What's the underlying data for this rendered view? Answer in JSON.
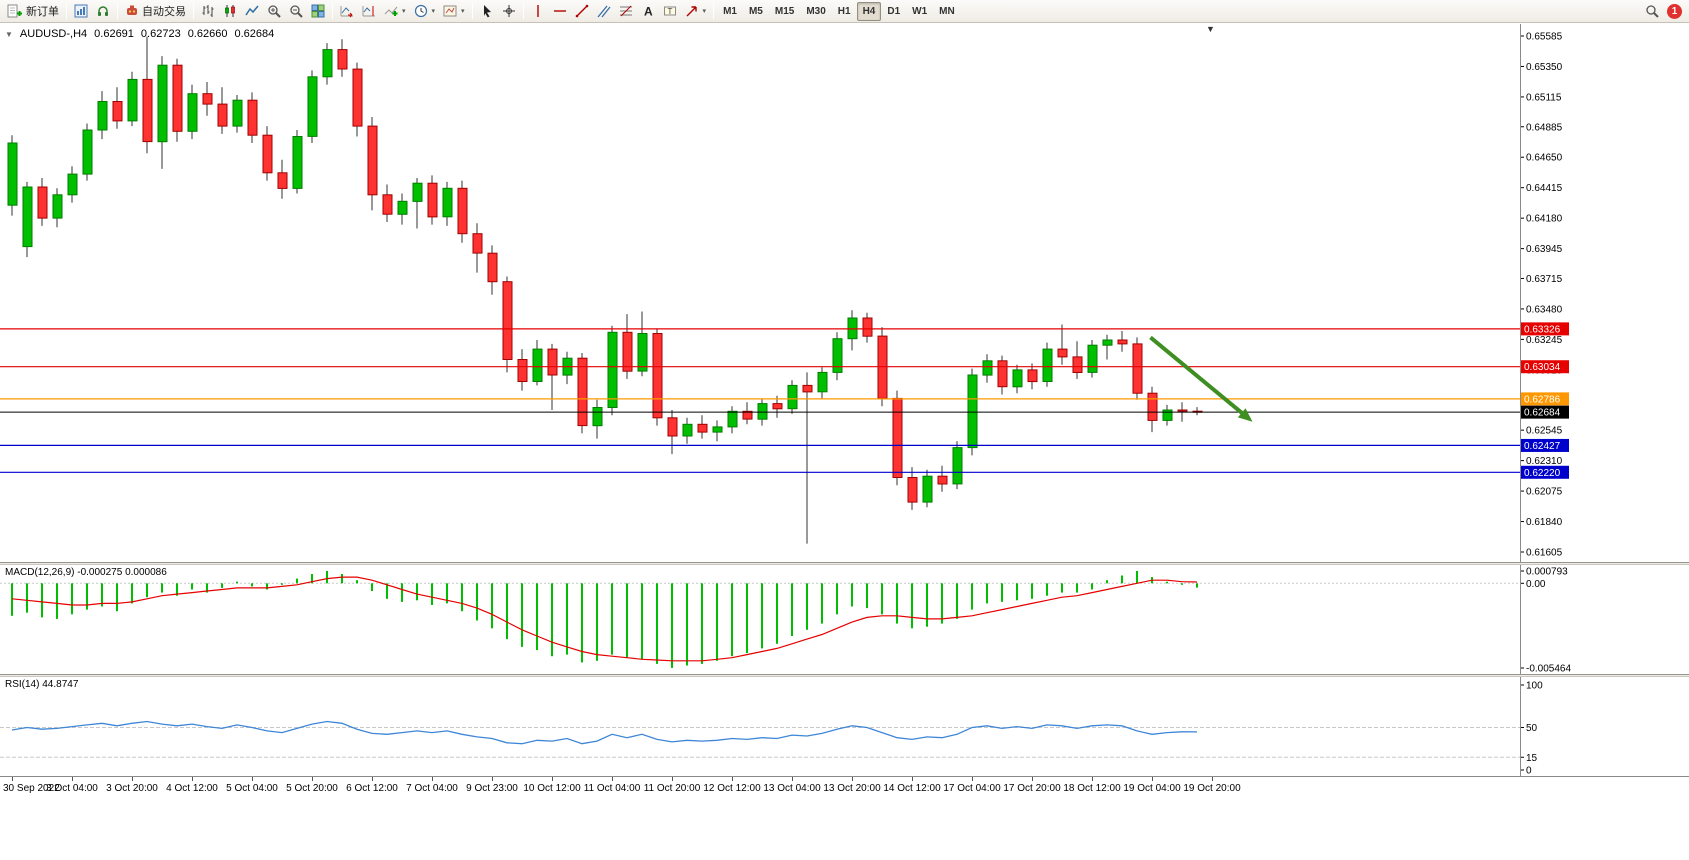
{
  "toolbar": {
    "new_order_label": "新订单",
    "autotrading_label": "自动交易",
    "timeframes": [
      "M1",
      "M5",
      "M15",
      "M30",
      "H1",
      "H4",
      "D1",
      "W1",
      "MN"
    ],
    "active_timeframe": "H4",
    "notification_badge": "1"
  },
  "icons": {
    "caret_down": "▾",
    "one_click": "▼",
    "shift_marker": "▼"
  },
  "chart_header": {
    "symbol_period": "AUDUSD-,H4",
    "open": "0.62691",
    "high": "0.62723",
    "low": "0.62660",
    "close": "0.62684"
  },
  "chart_data": {
    "type": "candlestick",
    "symbol": "AUDUSD-",
    "period": "H4",
    "colors": {
      "up": "#00be00",
      "down": "#ff3232",
      "up_border": "#007d00",
      "down_border": "#a00000",
      "wick": "#333333",
      "bg": "#ffffff"
    },
    "price_axis": {
      "min": 0.61605,
      "max": 0.65585,
      "ticks": [
        0.65585,
        0.6535,
        0.65115,
        0.64885,
        0.6465,
        0.64415,
        0.6418,
        0.63945,
        0.63715,
        0.6348,
        0.63245,
        0.6301,
        0.6278,
        0.62545,
        0.6231,
        0.62075,
        0.6184,
        0.61605
      ]
    },
    "hlines": [
      {
        "price": 0.63326,
        "label": "0.63326",
        "color": "#e60000"
      },
      {
        "price": 0.63034,
        "label": "0.63034",
        "color": "#e60000"
      },
      {
        "price": 0.62786,
        "label": "0.62786",
        "color": "#ff9800"
      },
      {
        "price": 0.62427,
        "label": "0.62427",
        "color": "#0000cc"
      },
      {
        "price": 0.6222,
        "label": "0.62220",
        "color": "#0000cc"
      }
    ],
    "current_price": {
      "price": 0.62684,
      "label": "0.62684",
      "color": "#000000"
    },
    "trend_arrow": {
      "x1_bar": 75.9,
      "p1": 0.6326,
      "x2_bar": 82.7,
      "p2": 0.6261,
      "color": "#3e8e22"
    },
    "time_labels": [
      "30 Sep 2022",
      "3 Oct 04:00",
      "3 Oct 20:00",
      "4 Oct 12:00",
      "5 Oct 04:00",
      "5 Oct 20:00",
      "6 Oct 12:00",
      "7 Oct 04:00",
      "9 Oct 23:00",
      "10 Oct 12:00",
      "11 Oct 04:00",
      "11 Oct 20:00",
      "12 Oct 12:00",
      "13 Oct 04:00",
      "13 Oct 20:00",
      "14 Oct 12:00",
      "17 Oct 04:00",
      "17 Oct 20:00",
      "18 Oct 12:00",
      "19 Oct 04:00",
      "19 Oct 20:00"
    ],
    "candles": [
      [
        0.6428,
        0.6482,
        0.642,
        0.6476
      ],
      [
        0.6396,
        0.6446,
        0.6388,
        0.6442
      ],
      [
        0.6442,
        0.6449,
        0.6412,
        0.6418
      ],
      [
        0.6418,
        0.6441,
        0.6411,
        0.6436
      ],
      [
        0.6436,
        0.6458,
        0.643,
        0.6452
      ],
      [
        0.6452,
        0.6491,
        0.6447,
        0.6486
      ],
      [
        0.6486,
        0.6516,
        0.6479,
        0.6508
      ],
      [
        0.6508,
        0.6519,
        0.6487,
        0.6493
      ],
      [
        0.6493,
        0.6531,
        0.6489,
        0.6525
      ],
      [
        0.6525,
        0.6558,
        0.6468,
        0.6477
      ],
      [
        0.6477,
        0.6543,
        0.6456,
        0.6536
      ],
      [
        0.6536,
        0.6541,
        0.6477,
        0.6485
      ],
      [
        0.6485,
        0.6521,
        0.6479,
        0.6514
      ],
      [
        0.6514,
        0.6523,
        0.6497,
        0.6506
      ],
      [
        0.6506,
        0.6519,
        0.6483,
        0.6489
      ],
      [
        0.6489,
        0.6513,
        0.6484,
        0.6509
      ],
      [
        0.6509,
        0.6515,
        0.6476,
        0.6482
      ],
      [
        0.6482,
        0.6489,
        0.6447,
        0.6453
      ],
      [
        0.6453,
        0.6463,
        0.6433,
        0.6441
      ],
      [
        0.6441,
        0.6486,
        0.6437,
        0.6481
      ],
      [
        0.6481,
        0.6532,
        0.6476,
        0.6527
      ],
      [
        0.6527,
        0.6553,
        0.6521,
        0.6548
      ],
      [
        0.6548,
        0.6556,
        0.6527,
        0.6533
      ],
      [
        0.6533,
        0.6538,
        0.6481,
        0.6489
      ],
      [
        0.6489,
        0.6496,
        0.6424,
        0.6436
      ],
      [
        0.6436,
        0.6444,
        0.6415,
        0.6421
      ],
      [
        0.6421,
        0.6437,
        0.6413,
        0.6431
      ],
      [
        0.6431,
        0.6449,
        0.641,
        0.6445
      ],
      [
        0.6445,
        0.6451,
        0.6413,
        0.6419
      ],
      [
        0.6419,
        0.6446,
        0.6412,
        0.6441
      ],
      [
        0.6441,
        0.6447,
        0.6399,
        0.6406
      ],
      [
        0.6406,
        0.6414,
        0.6376,
        0.6391
      ],
      [
        0.6391,
        0.6397,
        0.6359,
        0.6369
      ],
      [
        0.6369,
        0.6373,
        0.6299,
        0.6309
      ],
      [
        0.6309,
        0.6317,
        0.6285,
        0.6292
      ],
      [
        0.6292,
        0.6324,
        0.6289,
        0.6317
      ],
      [
        0.6317,
        0.6321,
        0.627,
        0.6297
      ],
      [
        0.6297,
        0.6315,
        0.629,
        0.631
      ],
      [
        0.631,
        0.6314,
        0.6252,
        0.6258
      ],
      [
        0.6258,
        0.6278,
        0.6248,
        0.6272
      ],
      [
        0.6272,
        0.6335,
        0.6266,
        0.633
      ],
      [
        0.633,
        0.6344,
        0.6294,
        0.63
      ],
      [
        0.63,
        0.6346,
        0.6296,
        0.6329
      ],
      [
        0.6329,
        0.6333,
        0.6258,
        0.6264
      ],
      [
        0.6264,
        0.627,
        0.6236,
        0.625
      ],
      [
        0.625,
        0.6264,
        0.6244,
        0.6259
      ],
      [
        0.6259,
        0.6266,
        0.6248,
        0.6253
      ],
      [
        0.6253,
        0.6262,
        0.6246,
        0.6257
      ],
      [
        0.6257,
        0.6273,
        0.6252,
        0.6269
      ],
      [
        0.6269,
        0.6276,
        0.6259,
        0.6263
      ],
      [
        0.6263,
        0.6279,
        0.6258,
        0.6275
      ],
      [
        0.6275,
        0.6281,
        0.6264,
        0.6271
      ],
      [
        0.6271,
        0.6293,
        0.6267,
        0.6289
      ],
      [
        0.6289,
        0.6299,
        0.6167,
        0.6284
      ],
      [
        0.6284,
        0.6303,
        0.6279,
        0.6299
      ],
      [
        0.6299,
        0.633,
        0.6293,
        0.6325
      ],
      [
        0.6325,
        0.6347,
        0.6316,
        0.6341
      ],
      [
        0.6341,
        0.6345,
        0.6322,
        0.6327
      ],
      [
        0.6327,
        0.6334,
        0.6273,
        0.6279
      ],
      [
        0.6279,
        0.6285,
        0.6212,
        0.6218
      ],
      [
        0.6218,
        0.6226,
        0.6193,
        0.6199
      ],
      [
        0.6199,
        0.6224,
        0.6195,
        0.6219
      ],
      [
        0.6219,
        0.6227,
        0.6207,
        0.6213
      ],
      [
        0.6213,
        0.6246,
        0.6209,
        0.6241
      ],
      [
        0.6241,
        0.6302,
        0.6235,
        0.6297
      ],
      [
        0.6297,
        0.6313,
        0.6291,
        0.6308
      ],
      [
        0.6308,
        0.6312,
        0.6282,
        0.6288
      ],
      [
        0.6288,
        0.6305,
        0.6283,
        0.6301
      ],
      [
        0.6301,
        0.6306,
        0.6286,
        0.6292
      ],
      [
        0.6292,
        0.6322,
        0.6288,
        0.6317
      ],
      [
        0.6317,
        0.6336,
        0.6305,
        0.6311
      ],
      [
        0.6311,
        0.6323,
        0.6294,
        0.6299
      ],
      [
        0.6299,
        0.6324,
        0.6295,
        0.632
      ],
      [
        0.632,
        0.6328,
        0.6309,
        0.6324
      ],
      [
        0.6324,
        0.6331,
        0.6315,
        0.6321
      ],
      [
        0.6321,
        0.6326,
        0.6278,
        0.6283
      ],
      [
        0.6283,
        0.6288,
        0.6253,
        0.6262
      ],
      [
        0.6262,
        0.6274,
        0.6258,
        0.627
      ],
      [
        0.627,
        0.6276,
        0.6261,
        0.6269
      ],
      [
        0.62691,
        0.62723,
        0.6266,
        0.62684
      ]
    ],
    "macd": {
      "label": "MACD(12,26,9) -0.000275 0.000086",
      "max": 0.000793,
      "min": -0.005464,
      "scale_labels": [
        "0.000793",
        "0.00",
        "-0.005464"
      ],
      "hist_color": "#00be00",
      "signal_color": "#e60000",
      "histogram": [
        -0.0021,
        -0.0019,
        -0.0022,
        -0.0023,
        -0.002,
        -0.0017,
        -0.0015,
        -0.0018,
        -0.0013,
        -0.0009,
        -0.0006,
        -0.0008,
        -0.0004,
        -0.0006,
        -0.0003,
        0.0001,
        -0.0002,
        -0.0004,
        -0.0001,
        0.0003,
        0.0006,
        0.00079,
        0.0006,
        0.0002,
        -0.0005,
        -0.001,
        -0.0012,
        -0.0011,
        -0.0014,
        -0.0013,
        -0.0018,
        -0.0024,
        -0.0029,
        -0.0036,
        -0.0041,
        -0.0043,
        -0.0047,
        -0.0046,
        -0.0051,
        -0.005,
        -0.0046,
        -0.0048,
        -0.0049,
        -0.0052,
        -0.00546,
        -0.0053,
        -0.0052,
        -0.005,
        -0.0047,
        -0.0045,
        -0.0042,
        -0.0039,
        -0.0034,
        -0.003,
        -0.0026,
        -0.002,
        -0.0015,
        -0.0016,
        -0.002,
        -0.0026,
        -0.0029,
        -0.0028,
        -0.0026,
        -0.0023,
        -0.0017,
        -0.0013,
        -0.0012,
        -0.0011,
        -0.001,
        -0.0008,
        -0.0006,
        -0.0006,
        -0.0004,
        0.0002,
        0.0005,
        0.00079,
        0.0004,
        0.0001,
        -0.0001,
        -0.000275
      ],
      "signal": [
        -0.001,
        -0.0011,
        -0.0012,
        -0.0013,
        -0.0014,
        -0.0014,
        -0.0013,
        -0.0013,
        -0.0012,
        -0.001,
        -0.0008,
        -0.0007,
        -0.0006,
        -0.0005,
        -0.0004,
        -0.0003,
        -0.0003,
        -0.0003,
        -0.0002,
        -0.0001,
        0.0001,
        0.0003,
        0.0004,
        0.0004,
        0.0002,
        -0.0001,
        -0.0004,
        -0.0007,
        -0.0009,
        -0.0011,
        -0.0013,
        -0.0016,
        -0.002,
        -0.0025,
        -0.003,
        -0.0034,
        -0.0038,
        -0.0041,
        -0.0044,
        -0.0046,
        -0.0047,
        -0.0048,
        -0.0049,
        -0.00495,
        -0.005,
        -0.005,
        -0.005,
        -0.0049,
        -0.0048,
        -0.0046,
        -0.0044,
        -0.0042,
        -0.0039,
        -0.0036,
        -0.0033,
        -0.0029,
        -0.0025,
        -0.0022,
        -0.0021,
        -0.0021,
        -0.0022,
        -0.0023,
        -0.0023,
        -0.0022,
        -0.0021,
        -0.0019,
        -0.0017,
        -0.0015,
        -0.0013,
        -0.0011,
        -0.0009,
        -0.0008,
        -0.0006,
        -0.0004,
        -0.0002,
        0.0,
        0.0002,
        0.0002,
        0.0001,
        8.6e-05
      ]
    },
    "rsi": {
      "label": "RSI(14) 44.8747",
      "levels": [
        100,
        50,
        15,
        0
      ],
      "line_color": "#3e86d8",
      "values": [
        47,
        50,
        48,
        49,
        51,
        53,
        55,
        52,
        55,
        57,
        54,
        52,
        54,
        51,
        49,
        53,
        50,
        46,
        44,
        49,
        54,
        57,
        55,
        48,
        43,
        42,
        44,
        46,
        44,
        46,
        42,
        39,
        37,
        32,
        31,
        35,
        34,
        37,
        31,
        34,
        42,
        38,
        42,
        36,
        33,
        35,
        34,
        35,
        37,
        36,
        38,
        37,
        41,
        40,
        43,
        48,
        52,
        50,
        44,
        38,
        36,
        39,
        38,
        42,
        50,
        52,
        49,
        51,
        49,
        53,
        52,
        49,
        52,
        53,
        52,
        46,
        42,
        44,
        45,
        44.8747
      ]
    }
  }
}
